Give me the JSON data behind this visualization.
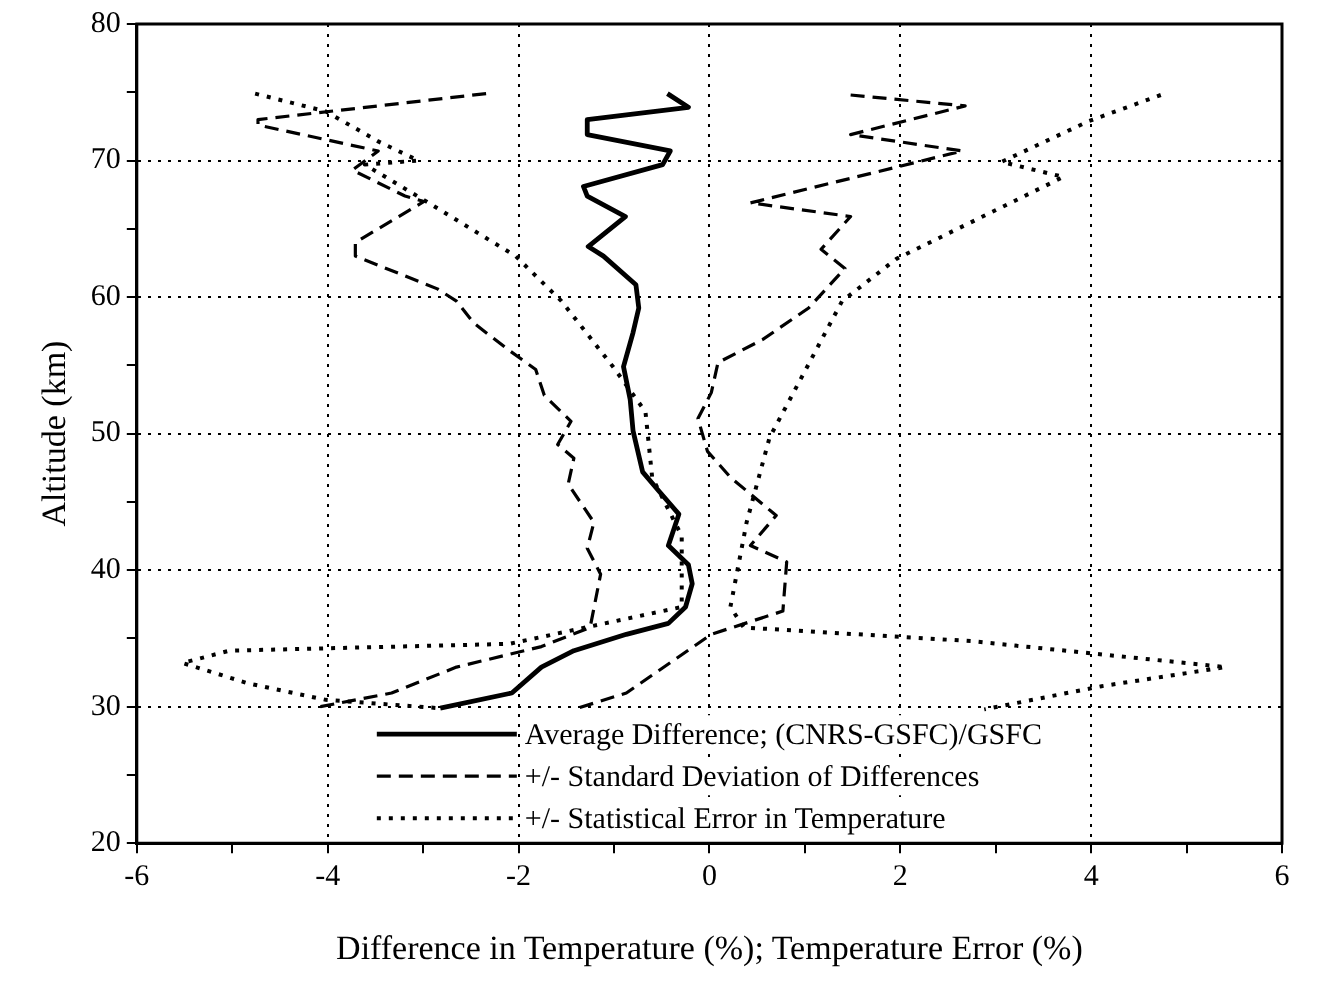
{
  "chart_data": {
    "type": "line",
    "xlabel": "Difference in Temperature (%); Temperature Error (%)",
    "ylabel": "Altitude (km)",
    "xlim": [
      -6,
      6
    ],
    "xticks": [
      -6,
      {
        "value": -5,
        "label": null
      },
      -4,
      {
        "value": -3,
        "label": null
      },
      -2,
      {
        "value": -1,
        "label": null
      },
      0,
      {
        "value": 1,
        "label": null
      },
      2,
      {
        "value": 3,
        "label": null
      },
      4,
      {
        "value": 5,
        "label": null
      },
      6
    ],
    "ylim": [
      20,
      80
    ],
    "yticks": [
      20,
      {
        "value": 25,
        "label": null
      },
      30,
      {
        "value": 35,
        "label": null
      },
      40,
      {
        "value": 45,
        "label": null
      },
      50,
      {
        "value": 55,
        "label": null
      },
      60,
      {
        "value": 65,
        "label": null
      },
      70,
      {
        "value": 75,
        "label": null
      },
      80
    ],
    "grid": true,
    "legend": "bottom",
    "marker": "none",
    "series": [
      {
        "name": "Average Difference; (CNRS-GSFC)/GSFC",
        "color": "#000000",
        "line_style": "solid",
        "x": [
          -0.44,
          -0.22,
          -1.28,
          -1.28,
          -0.41,
          -0.49,
          -1.32,
          -1.28,
          -0.88,
          -1.27,
          -1.11,
          -0.77,
          -0.74,
          -0.8,
          -0.9,
          -0.83,
          -0.8,
          -0.7,
          -0.53,
          -0.32,
          -0.43,
          -0.22,
          -0.18,
          -0.25,
          -0.43,
          -0.87,
          -1.42,
          -1.76,
          -2.07,
          -2.82
        ],
        "values": [
          74.9,
          73.9,
          73.0,
          71.9,
          70.7,
          69.7,
          68.1,
          67.4,
          65.9,
          63.7,
          63.0,
          60.9,
          59.2,
          57.4,
          54.9,
          52.5,
          50.2,
          47.2,
          45.8,
          44.1,
          41.8,
          40.4,
          39.0,
          37.3,
          36.1,
          35.3,
          34.1,
          32.9,
          31.0,
          29.9
        ]
      },
      {
        "name": "+/- Standard Deviation of Differences",
        "color": "#000000",
        "line_style": "dashed",
        "x": [
          -2.34,
          -4.73,
          -4.73,
          -3.47,
          -3.74,
          -3.19,
          -2.99,
          -3.71,
          -3.71,
          -2.85,
          -2.65,
          -2.47,
          -2.1,
          -1.82,
          -1.73,
          -1.45,
          -1.59,
          -1.42,
          -1.48,
          -1.21,
          -1.28,
          -1.14,
          -1.25,
          -1.76,
          -2.65,
          -3.33,
          -4.15
        ],
        "values": [
          74.9,
          73.0,
          72.6,
          70.7,
          69.3,
          67.4,
          67.0,
          64.0,
          63.0,
          60.6,
          59.7,
          58.1,
          56.1,
          54.7,
          52.8,
          50.9,
          49.2,
          48.2,
          46.3,
          43.5,
          41.6,
          39.7,
          35.8,
          34.4,
          32.9,
          31.0,
          29.9
        ]
      },
      {
        "color": "#000000",
        "line_style": "dashed",
        "x": [
          1.48,
          2.68,
          1.48,
          2.65,
          0.43,
          1.48,
          1.17,
          1.42,
          1.04,
          0.56,
          0.09,
          0.02,
          -0.12,
          -0.02,
          0.22,
          0.7,
          0.43,
          0.81,
          0.77,
          0.02,
          -0.87,
          -1.42
        ],
        "values": [
          74.8,
          74.0,
          71.9,
          70.7,
          66.9,
          65.9,
          63.5,
          62.1,
          59.2,
          56.9,
          55.2,
          53.0,
          51.1,
          48.7,
          46.8,
          44.0,
          41.8,
          40.6,
          37.0,
          35.3,
          31.0,
          29.8
        ]
      },
      {
        "name": "+/- Statistical Error in Temperature",
        "color": "#000000",
        "line_style": "dotted",
        "x": [
          -4.76,
          -4.02,
          -3.47,
          -3.05,
          -3.61,
          -2.99,
          -2.03,
          -1.55,
          -1.01,
          -0.67,
          -0.6,
          -0.29,
          -0.29,
          -2.1,
          -5.03,
          -5.52,
          -4.83,
          -4.02,
          -2.85
        ],
        "values": [
          74.9,
          73.6,
          71.4,
          70.0,
          69.7,
          67.1,
          63.0,
          59.7,
          54.9,
          51.6,
          46.8,
          42.5,
          37.3,
          34.6,
          34.1,
          33.2,
          31.7,
          30.5,
          29.9
        ]
      },
      {
        "color": "#000000",
        "line_style": "dotted",
        "x": [
          4.73,
          3.98,
          3.06,
          3.71,
          1.96,
          1.39,
          0.63,
          0.39,
          0.22,
          0.36,
          2.75,
          5.41,
          4.11,
          2.88
        ],
        "values": [
          74.8,
          72.9,
          69.9,
          68.8,
          62.8,
          59.7,
          49.7,
          43.5,
          37.3,
          35.8,
          34.8,
          32.9,
          31.5,
          29.8
        ]
      }
    ]
  }
}
